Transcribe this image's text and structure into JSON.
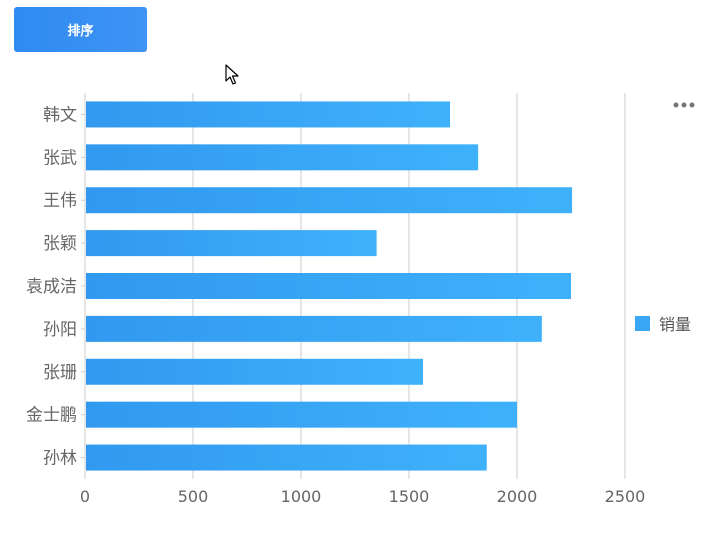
{
  "toolbar": {
    "sort_label": "排序"
  },
  "colors": {
    "bar_start": "#3199ef",
    "bar_end": "#3fb1fb",
    "legend_swatch": "#39a6f6",
    "grid": "#cccccc",
    "axis_text": "#666666"
  },
  "chart_data": {
    "type": "bar",
    "orientation": "horizontal",
    "categories": [
      "韩文",
      "张武",
      "王伟",
      "张颖",
      "袁成洁",
      "孙阳",
      "张珊",
      "金士鹏",
      "孙林"
    ],
    "series": [
      {
        "name": "销量",
        "values": [
          1690,
          1820,
          2255,
          1350,
          2250,
          2115,
          1565,
          2000,
          1860
        ]
      }
    ],
    "xlim": [
      0,
      2700
    ],
    "x_ticks": [
      0,
      500,
      1000,
      1500,
      2000,
      2500
    ],
    "grid": true,
    "legend_position": "right"
  }
}
